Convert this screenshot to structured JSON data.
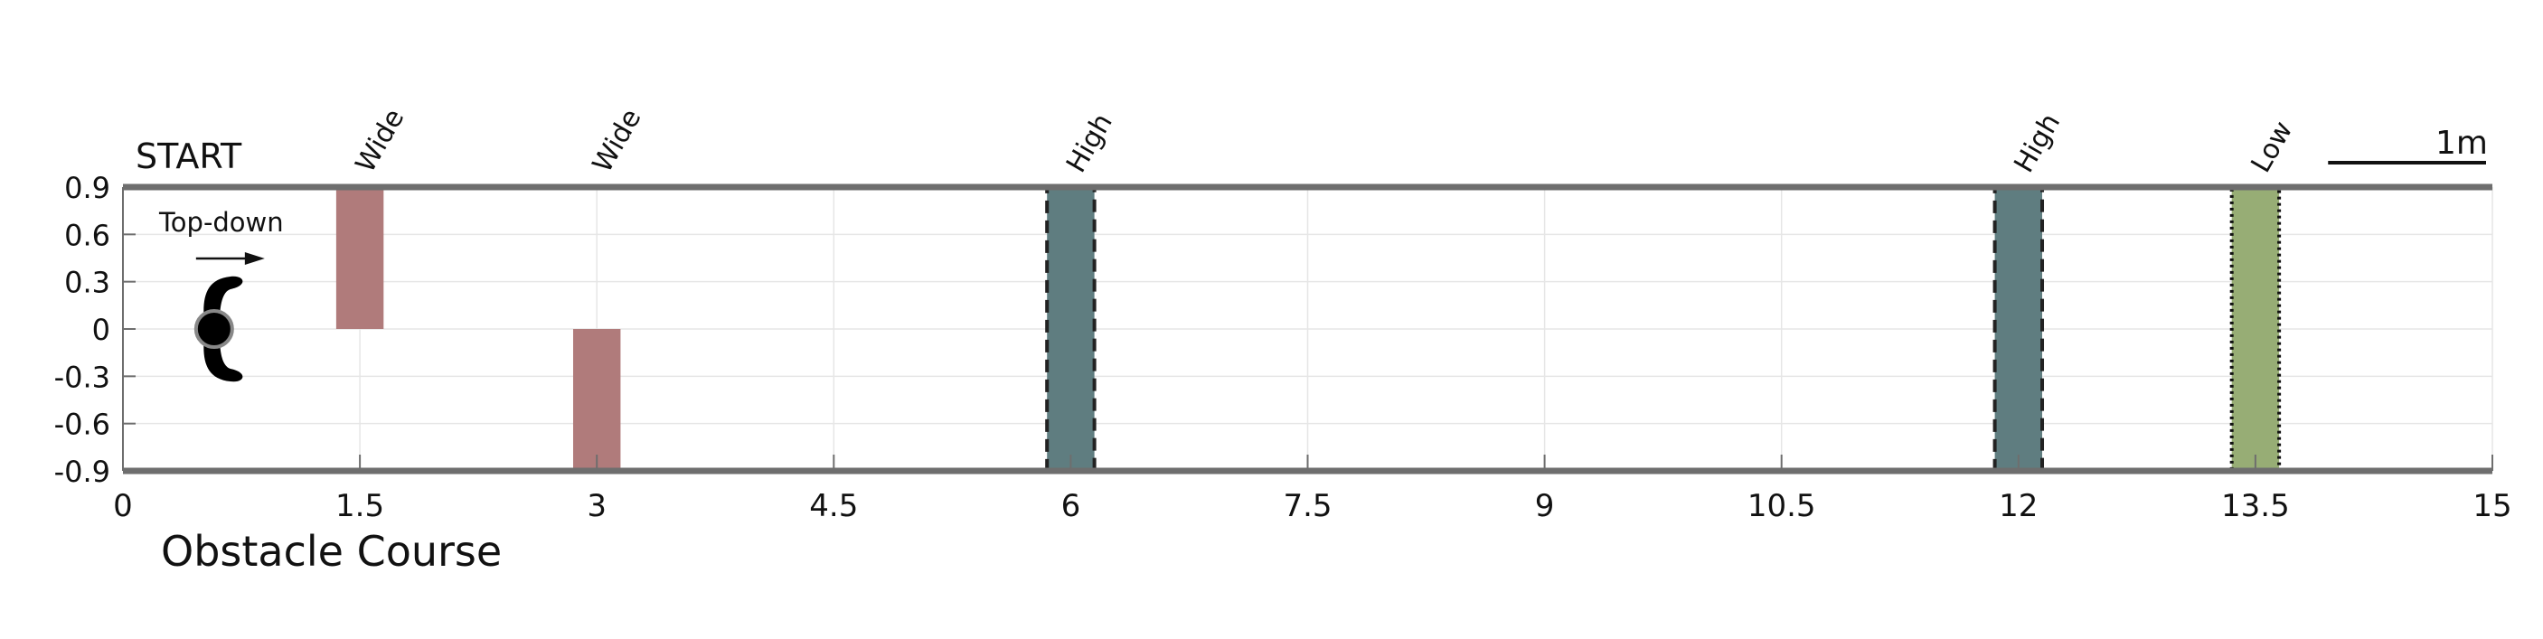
{
  "chart_data": {
    "type": "bar",
    "title": "Obstacle Course",
    "start_label": "START",
    "scale_bar_label": "1m",
    "robot_annotation": "Top-down",
    "xlim": [
      0,
      15
    ],
    "ylim": [
      -0.9,
      0.9
    ],
    "x_ticks": [
      "0",
      "1.5",
      "3",
      "4.5",
      "6",
      "7.5",
      "9",
      "10.5",
      "12",
      "13.5",
      "15"
    ],
    "y_ticks": [
      "0.9",
      "0.6",
      "0.3",
      "0",
      "-0.3",
      "-0.6",
      "-0.9"
    ],
    "grid": true,
    "obstacles": [
      {
        "label": "Wide",
        "x_start": 1.35,
        "x_end": 1.65,
        "y_start": 0,
        "y_end": 0.9,
        "color": "#b07b7b",
        "border": "none"
      },
      {
        "label": "Wide",
        "x_start": 2.85,
        "x_end": 3.15,
        "y_start": -0.9,
        "y_end": 0,
        "color": "#b07b7b",
        "border": "none"
      },
      {
        "label": "High",
        "x_start": 5.85,
        "x_end": 6.15,
        "y_start": -0.9,
        "y_end": 0.9,
        "color": "#5f7d80",
        "border": "dashed"
      },
      {
        "label": "High",
        "x_start": 11.85,
        "x_end": 12.15,
        "y_start": -0.9,
        "y_end": 0.9,
        "color": "#5f7d80",
        "border": "dashed"
      },
      {
        "label": "Low",
        "x_start": 13.35,
        "x_end": 13.65,
        "y_start": -0.9,
        "y_end": 0.9,
        "color": "#97ad75",
        "border": "dotted"
      }
    ],
    "robot_position": {
      "x": 0.6,
      "y": 0
    }
  }
}
